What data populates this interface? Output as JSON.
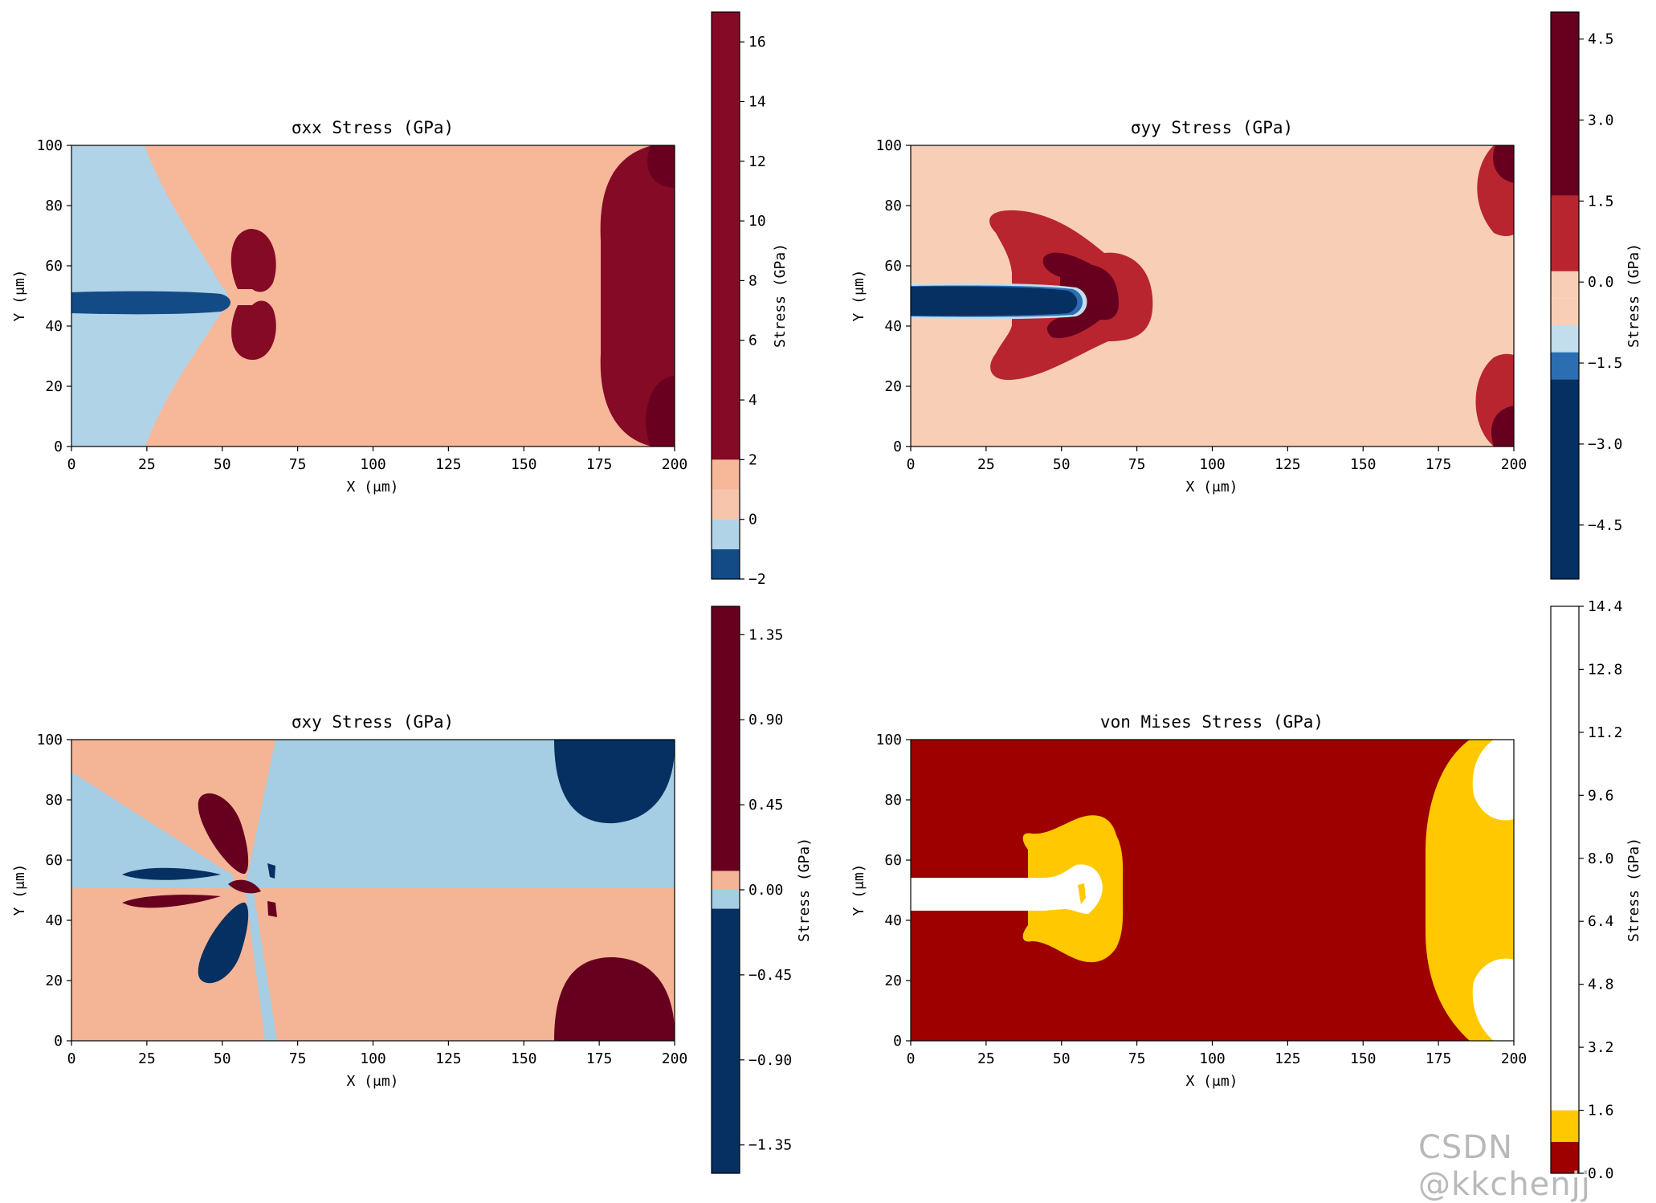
{
  "watermark": "CSDN @kkchenjj",
  "chart_data": [
    {
      "type": "contour",
      "title": "σxx Stress (GPa)",
      "xlabel": "X (μm)",
      "ylabel": "Y (μm)",
      "xlim": [
        0,
        200
      ],
      "ylim": [
        0,
        100
      ],
      "xticks": [
        "0",
        "25",
        "50",
        "75",
        "100",
        "125",
        "150",
        "175",
        "200"
      ],
      "yticks": [
        "0",
        "20",
        "40",
        "60",
        "80",
        "100"
      ],
      "colorbar": {
        "label": "Stress (GPa)",
        "range": [
          -2,
          17
        ],
        "ticks": [
          "−2",
          "0",
          "2",
          "4",
          "6",
          "8",
          "10",
          "12",
          "14",
          "16"
        ],
        "tick_values": [
          -2,
          0,
          2,
          4,
          6,
          8,
          10,
          12,
          14,
          16
        ],
        "levels": [
          -2,
          -1,
          0,
          1,
          2,
          17
        ],
        "colors": [
          "#134b86",
          "#b1d3e7",
          "#f6c5ac",
          "#f6b899",
          "#840a25"
        ]
      },
      "colors": {
        "background": "#f6b899",
        "light_blue": "#b1d3e7",
        "crack": "#134b86",
        "high": "#840a25",
        "peak": "#69001f"
      }
    },
    {
      "type": "contour",
      "title": "σyy Stress (GPa)",
      "xlabel": "X (μm)",
      "ylabel": "Y (μm)",
      "xlim": [
        0,
        200
      ],
      "ylim": [
        0,
        100
      ],
      "xticks": [
        "0",
        "25",
        "50",
        "75",
        "100",
        "125",
        "150",
        "175",
        "200"
      ],
      "yticks": [
        "0",
        "20",
        "40",
        "60",
        "80",
        "100"
      ],
      "colorbar": {
        "label": "Stress (GPa)",
        "range": [
          -5.5,
          5
        ],
        "ticks": [
          "−4.5",
          "−3.0",
          "−1.5",
          "0.0",
          "1.5",
          "3.0",
          "4.5"
        ],
        "tick_values": [
          -4.5,
          -3.0,
          -1.5,
          0.0,
          1.5,
          3.0,
          4.5
        ],
        "levels": [
          -5.5,
          -1.8,
          -1.3,
          -0.8,
          -0.3,
          0.2,
          1.6,
          5
        ],
        "colors": [
          "#053061",
          "#2b6eb1",
          "#c2ddec",
          "#f8cfb6",
          "#f8cfb6",
          "#b8252f",
          "#67001f"
        ]
      },
      "colors": {
        "background": "#f8cfb6",
        "crack": "#053061",
        "mid": "#b8252f",
        "peak": "#67001f"
      }
    },
    {
      "type": "contour",
      "title": "σxy Stress (GPa)",
      "xlabel": "X (μm)",
      "ylabel": "Y (μm)",
      "xlim": [
        0,
        200
      ],
      "ylim": [
        0,
        100
      ],
      "xticks": [
        "0",
        "25",
        "50",
        "75",
        "100",
        "125",
        "150",
        "175",
        "200"
      ],
      "yticks": [
        "0",
        "20",
        "40",
        "60",
        "80",
        "100"
      ],
      "colorbar": {
        "label": "Stress (GPa)",
        "range": [
          -1.5,
          1.5
        ],
        "ticks": [
          "−1.35",
          "−0.90",
          "−0.45",
          "0.00",
          "0.45",
          "0.90",
          "1.35"
        ],
        "tick_values": [
          -1.35,
          -0.9,
          -0.45,
          0.0,
          0.45,
          0.9,
          1.35
        ],
        "levels": [
          -1.5,
          -0.1,
          0.0,
          0.1,
          1.5
        ],
        "colors": [
          "#053061",
          "#a5cde3",
          "#f4b597",
          "#67001f"
        ]
      },
      "colors": {
        "positive": "#f4b597",
        "negative": "#a5cde3",
        "low": "#053061",
        "high": "#67001f"
      }
    },
    {
      "type": "contour",
      "title": "von Mises Stress (GPa)",
      "xlabel": "X (μm)",
      "ylabel": "Y (μm)",
      "xlim": [
        0,
        200
      ],
      "ylim": [
        0,
        100
      ],
      "xticks": [
        "0",
        "25",
        "50",
        "75",
        "100",
        "125",
        "150",
        "175",
        "200"
      ],
      "yticks": [
        "0",
        "20",
        "40",
        "60",
        "80",
        "100"
      ],
      "colorbar": {
        "label": "Stress (GPa)",
        "range": [
          0,
          14.4
        ],
        "ticks": [
          "0.0",
          "1.6",
          "3.2",
          "4.8",
          "6.4",
          "8.0",
          "9.6",
          "11.2",
          "12.8",
          "14.4"
        ],
        "tick_values": [
          0.0,
          1.6,
          3.2,
          4.8,
          6.4,
          8.0,
          9.6,
          11.2,
          12.8,
          14.4
        ],
        "levels": [
          0,
          0.8,
          1.6,
          14.4
        ],
        "colors": [
          "#9e0000",
          "#ffc800",
          "#ffffff"
        ]
      },
      "colors": {
        "background": "#9e0000",
        "mid": "#ffc800",
        "high": "#ffffff"
      }
    }
  ]
}
